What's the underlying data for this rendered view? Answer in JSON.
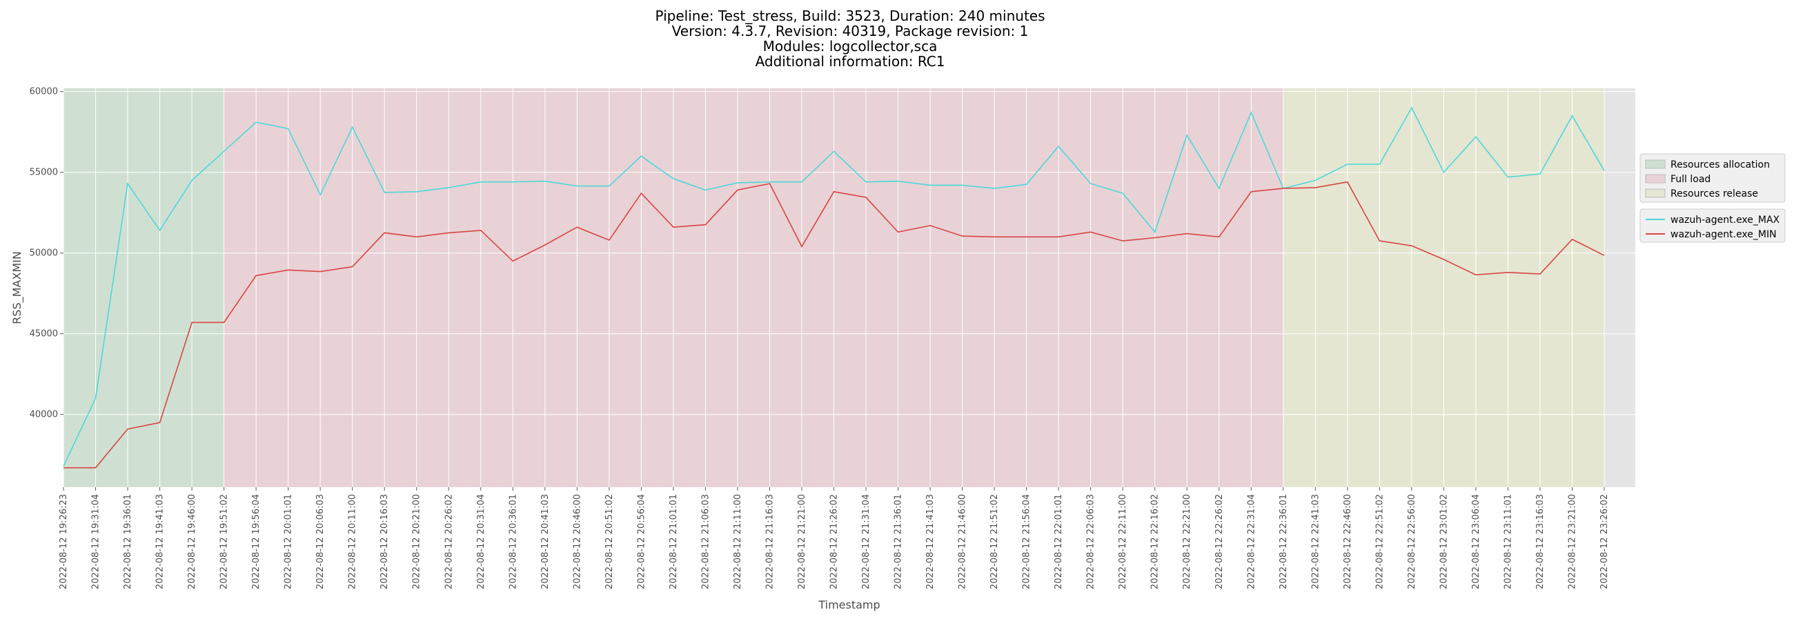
{
  "chart_data": {
    "type": "line",
    "title_lines": [
      "Pipeline: Test_stress, Build: 3523, Duration: 240 minutes",
      "Version: 4.3.7, Revision: 40319, Package revision: 1",
      "Modules: logcollector,sca",
      "Additional information: RC1"
    ],
    "xlabel": "Timestamp",
    "ylabel": "RSS_MAXMIN",
    "ylim": [
      35500,
      60200
    ],
    "yticks": [
      40000,
      45000,
      50000,
      55000,
      60000
    ],
    "grid": true,
    "legend_placement": "right",
    "x": [
      "2022-08-12 19:26:23",
      "2022-08-12 19:31:04",
      "2022-08-12 19:36:01",
      "2022-08-12 19:41:03",
      "2022-08-12 19:46:00",
      "2022-08-12 19:51:02",
      "2022-08-12 19:56:04",
      "2022-08-12 20:01:01",
      "2022-08-12 20:06:03",
      "2022-08-12 20:11:00",
      "2022-08-12 20:16:03",
      "2022-08-12 20:21:00",
      "2022-08-12 20:26:02",
      "2022-08-12 20:31:04",
      "2022-08-12 20:36:01",
      "2022-08-12 20:41:03",
      "2022-08-12 20:46:00",
      "2022-08-12 20:51:02",
      "2022-08-12 20:56:04",
      "2022-08-12 21:01:01",
      "2022-08-12 21:06:03",
      "2022-08-12 21:11:00",
      "2022-08-12 21:16:03",
      "2022-08-12 21:21:00",
      "2022-08-12 21:26:02",
      "2022-08-12 21:31:04",
      "2022-08-12 21:36:01",
      "2022-08-12 21:41:03",
      "2022-08-12 21:46:00",
      "2022-08-12 21:51:02",
      "2022-08-12 21:56:04",
      "2022-08-12 22:01:01",
      "2022-08-12 22:06:03",
      "2022-08-12 22:11:00",
      "2022-08-12 22:16:02",
      "2022-08-12 22:21:00",
      "2022-08-12 22:26:02",
      "2022-08-12 22:31:04",
      "2022-08-12 22:36:01",
      "2022-08-12 22:41:03",
      "2022-08-12 22:46:00",
      "2022-08-12 22:51:02",
      "2022-08-12 22:56:00",
      "2022-08-12 23:01:02",
      "2022-08-12 23:06:04",
      "2022-08-12 23:11:01",
      "2022-08-12 23:16:03",
      "2022-08-12 23:21:00",
      "2022-08-12 23:26:02"
    ],
    "series": [
      {
        "name": "wazuh-agent.exe_MAX",
        "color": "#4dd8d8",
        "values": [
          36800,
          41000,
          54300,
          51400,
          54500,
          56300,
          58100,
          57700,
          53600,
          57800,
          53750,
          53800,
          54050,
          54400,
          54400,
          54450,
          54150,
          54150,
          56000,
          54600,
          53900,
          54350,
          54400,
          54400,
          56300,
          54400,
          54450,
          54200,
          54200,
          54000,
          54250,
          56600,
          54300,
          53700,
          51300,
          57300,
          54000,
          58700,
          54000,
          54500,
          55500,
          55500,
          59000,
          55000,
          57200,
          54700,
          54900,
          58500,
          55100
        ]
      },
      {
        "name": "wazuh-agent.exe_MIN",
        "color": "#d84444",
        "values": [
          36700,
          36700,
          39100,
          39500,
          45700,
          45700,
          48600,
          48950,
          48850,
          49150,
          51250,
          51000,
          51250,
          51400,
          49500,
          50500,
          51600,
          50800,
          53700,
          51600,
          51750,
          53900,
          54300,
          50400,
          53800,
          53450,
          51300,
          51700,
          51050,
          51000,
          51000,
          51000,
          51300,
          50750,
          50950,
          51200,
          51000,
          53800,
          54000,
          54050,
          54400,
          50750,
          50450,
          49600,
          48650,
          48800,
          48700,
          50850,
          49850
        ]
      }
    ],
    "phases": [
      {
        "name": "Resources allocation",
        "start_index": 0,
        "end_index": 5,
        "color": "#cfe0d2"
      },
      {
        "name": "Full load",
        "start_index": 5,
        "end_index": 38,
        "color": "#e8d2d6"
      },
      {
        "name": "Resources release",
        "start_index": 38,
        "end_index": 48,
        "color": "#e4e6d2"
      }
    ],
    "plot_background": "#e5e5e5"
  }
}
